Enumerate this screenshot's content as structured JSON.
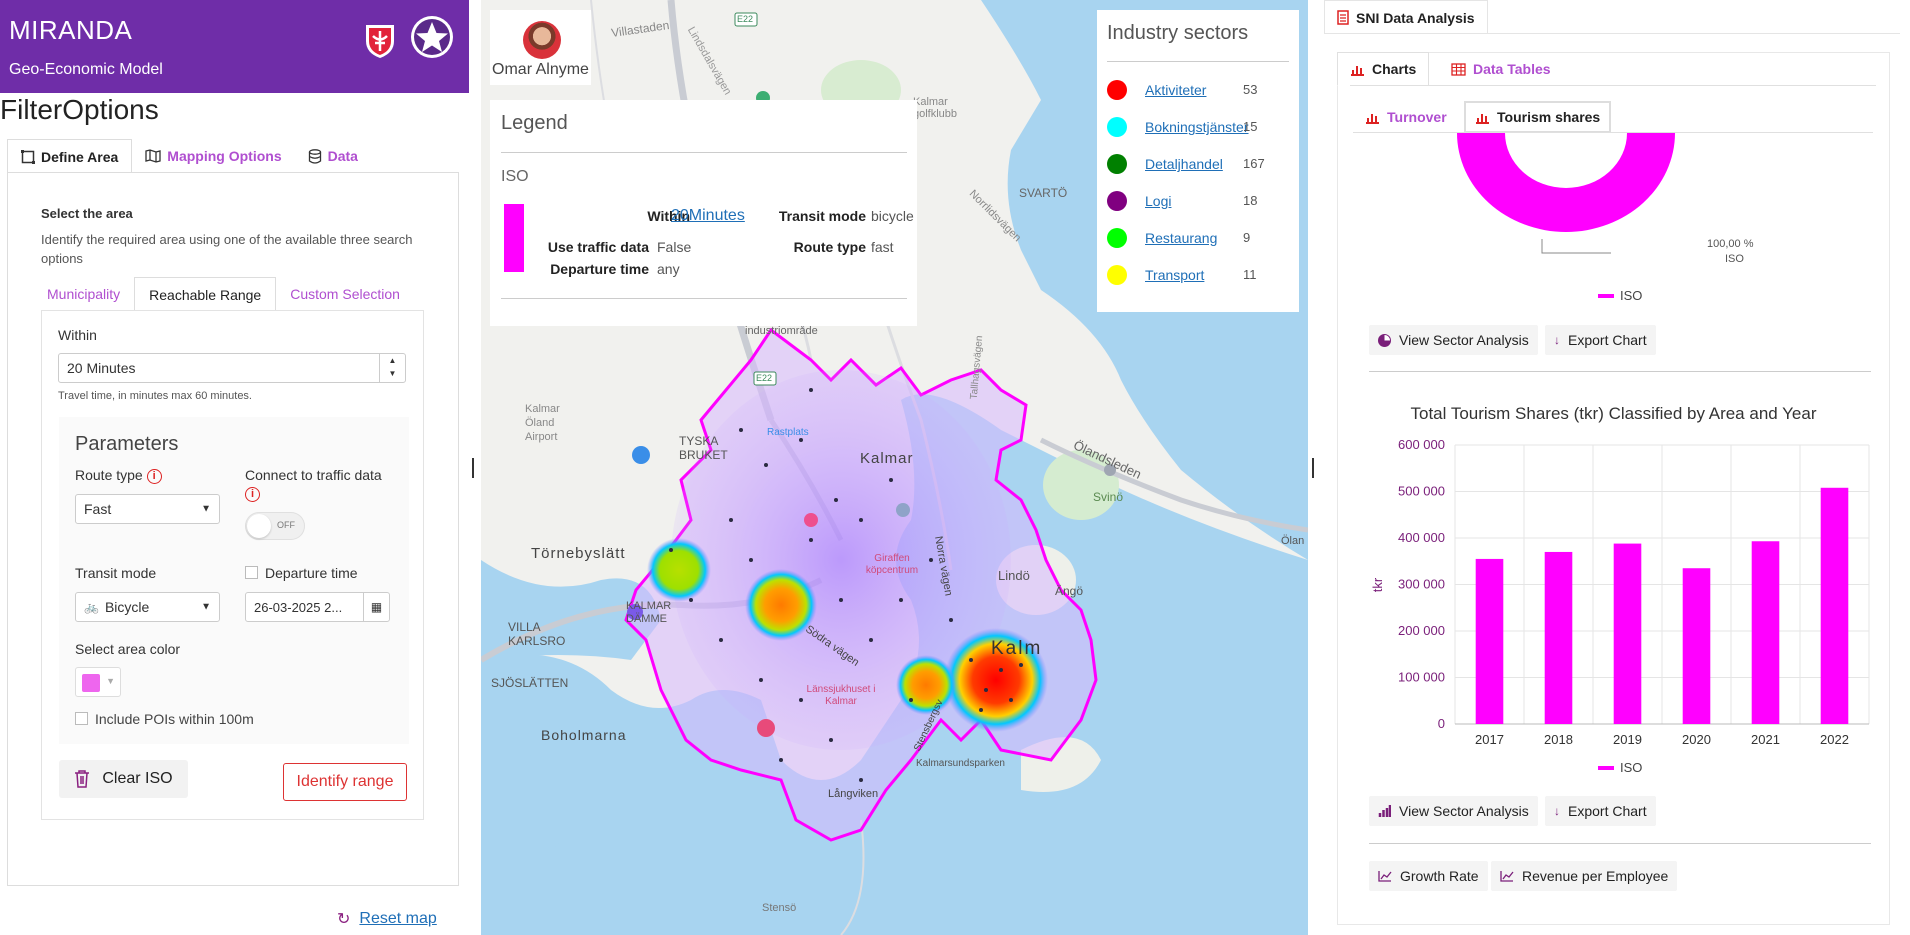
{
  "app": {
    "title": "MIRANDA",
    "subtitle": "Geo-Economic Model"
  },
  "filter": {
    "title": "FilterOptions",
    "tabs": [
      "Define Area",
      "Mapping Options",
      "Data"
    ],
    "select_area_title": "Select the area",
    "select_area_desc": "Identify the required area using one of the available three search options",
    "subtabs": [
      "Municipality",
      "Reachable Range",
      "Custom Selection"
    ],
    "within_label": "Within",
    "within_value": "20 Minutes",
    "within_help": "Travel time, in minutes max 60 minutes.",
    "params_title": "Parameters",
    "route_type_label": "Route type",
    "route_type_value": "Fast",
    "traffic_label": "Connect to traffic data",
    "toggle_text": "OFF",
    "transit_label": "Transit mode",
    "transit_value": "Bicycle",
    "departure_label": "Departure time",
    "departure_value": "26-03-2025 2...",
    "area_color_label": "Select area color",
    "area_color": "#ee66ee",
    "include_pois_label": "Include POIs within 100m",
    "clear_button": "Clear ISO",
    "identify_button": "Identify range",
    "reset_map": "Reset map"
  },
  "map": {
    "user_name": "Omar Alnyme",
    "legend": {
      "title": "Legend",
      "layer": "ISO",
      "within_label": "Within",
      "within_value": "20Minutes",
      "transit_label": "Transit mode",
      "transit_value": "bicycle",
      "traffic_label": "Use traffic data",
      "traffic_value": "False",
      "route_label": "Route type",
      "route_value": "fast",
      "departure_label": "Departure time",
      "departure_value": "any",
      "color": "#ff00ff"
    },
    "industry": {
      "title": "Industry sectors",
      "items": [
        {
          "name": "Aktiviteter",
          "count": "53",
          "color": "#ff0000"
        },
        {
          "name": "Bokningstjänster",
          "count": "15",
          "color": "#00ffff"
        },
        {
          "name": "Detaljhandel",
          "count": "167",
          "color": "#008000"
        },
        {
          "name": "Logi",
          "count": "18",
          "color": "#800080"
        },
        {
          "name": "Restaurang",
          "count": "9",
          "color": "#00ff00"
        },
        {
          "name": "Transport",
          "count": "11",
          "color": "#ffff00"
        }
      ]
    },
    "places": {
      "e22_top": "E22",
      "e22_mid": "E22",
      "villastaden": "Villastaden",
      "lindsdal": "Lindsdalsvägen",
      "kalmar_golf": "Kalmar golfklubb",
      "svarto": "SVARTÖ",
      "norrliden": "Norrlidsvägen",
      "industriomrade": "industriområde",
      "kalmar_airport": "Kalmar Öland Airport",
      "tyska_bruket": "TYSKA BRUKET",
      "rastplats": "Rastplats",
      "kalmar": "Kalmar",
      "olandsleden": "Ölandsleden",
      "svino": "Svinö",
      "tornebyslatt": "Törnebyslätt",
      "giraffen": "Giraffen köpcentrum",
      "lindo": "Lindö",
      "ango": "Ängö",
      "kalmar_damme": "KALMAR DÄMME",
      "villa_karlsro": "VILLA KARLSRO",
      "sodra_vagen": "Södra vägen",
      "kalmar_city": "Kalm",
      "sjoslatten": "SJÖSLÄTTEN",
      "lanssjukhuset": "Länssjukhuset i Kalmar",
      "boholmarna": "Boholmarna",
      "kalmarsundsparken": "Kalmarsundsparken",
      "langviken": "Långviken",
      "steno": "Stensö",
      "olan": "Ölan",
      "tallhagsvagen": "Tallhagsvägen",
      "norra_vagen": "Norra vägen",
      "stensbergsv": "Stensbergsv"
    }
  },
  "sni": {
    "tab": "SNI Data Analysis",
    "subtabs": [
      "Charts",
      "Data Tables"
    ],
    "chart_tabs": [
      "Turnover",
      "Tourism shares"
    ],
    "pie_label_value": "100,00 %",
    "pie_label_name": "ISO",
    "pie_legend": "ISO",
    "view_sector_1": "View Sector Analysis",
    "export_1": "Export Chart",
    "view_sector_2": "View Sector Analysis",
    "export_2": "Export Chart",
    "growth_rate": "Growth Rate",
    "revenue_per_employee": "Revenue per Employee",
    "accent": "#ff00ff"
  },
  "chart_data": {
    "type": "bar",
    "title": "Total Tourism Shares (tkr) Classified by Area and Year",
    "categories": [
      "2017",
      "2018",
      "2019",
      "2020",
      "2021",
      "2022"
    ],
    "series": [
      {
        "name": "ISO",
        "values": [
          355000,
          370000,
          388000,
          335000,
          393000,
          508000
        ]
      }
    ],
    "ylabel": "tkr",
    "xlabel": "",
    "ylim": [
      0,
      600000
    ],
    "yticks": [
      "0",
      "100 000",
      "200 000",
      "300 000",
      "400 000",
      "500 000",
      "600 000"
    ],
    "grid": true,
    "legend": "bottom"
  }
}
